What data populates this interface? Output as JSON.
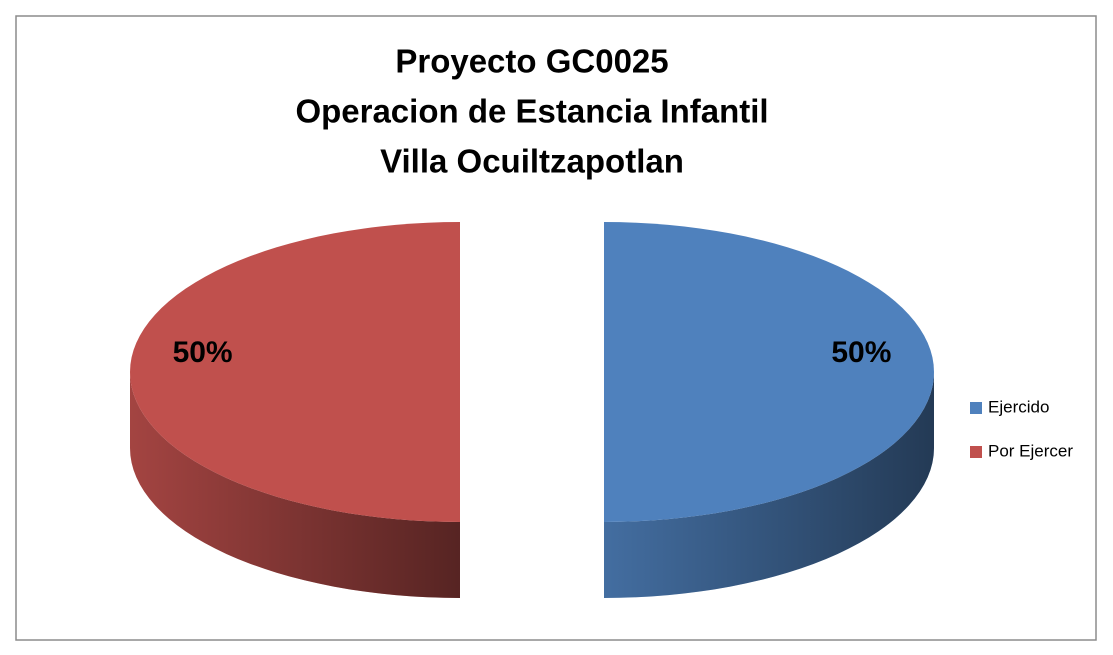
{
  "chart_data": {
    "type": "pie3d",
    "title": [
      "Proyecto GC0025",
      "Operacion de Estancia Infantil",
      "Villa Ocuiltzapotlan"
    ],
    "categories": [
      "Ejercido",
      "Por Ejercer"
    ],
    "values": [
      50,
      50
    ],
    "value_labels": [
      "50%",
      "50%"
    ],
    "colors": [
      "#4f81bd",
      "#c0504d"
    ],
    "legend": "right"
  }
}
